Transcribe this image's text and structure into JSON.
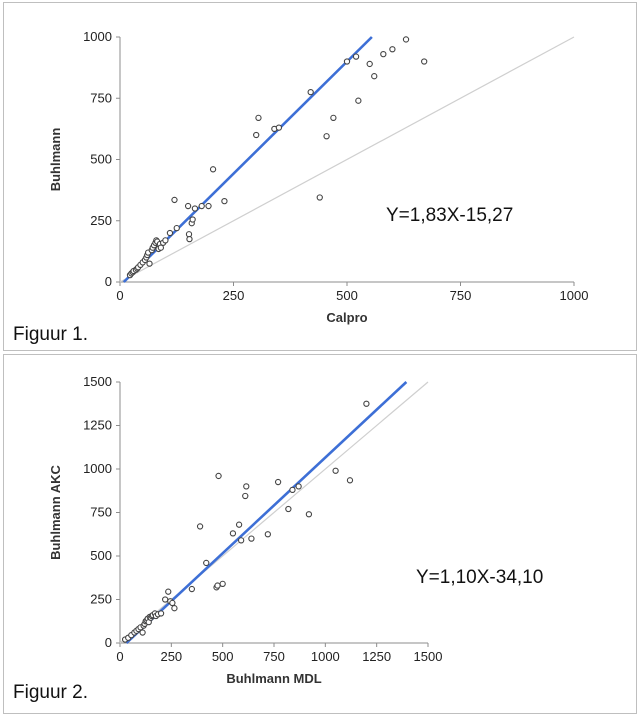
{
  "chart_data": [
    {
      "type": "scatter",
      "caption": "Figuur 1.",
      "equation": "Y=1,83X-15,27",
      "xlabel": "Calpro",
      "ylabel": "Buhlmann",
      "xlim": [
        0,
        1000
      ],
      "ylim": [
        0,
        1000
      ],
      "xticks": [
        0,
        250,
        500,
        750,
        1000
      ],
      "yticks": [
        0,
        250,
        500,
        750,
        1000
      ],
      "regression": {
        "slope": 1.83,
        "intercept": -15.27,
        "color": "#3d6fd6"
      },
      "identity_line": {
        "color": "#cfcfcf"
      },
      "points": [
        [
          22,
          28
        ],
        [
          25,
          35
        ],
        [
          28,
          40
        ],
        [
          30,
          45
        ],
        [
          35,
          50
        ],
        [
          38,
          55
        ],
        [
          40,
          60
        ],
        [
          45,
          70
        ],
        [
          50,
          80
        ],
        [
          55,
          90
        ],
        [
          58,
          100
        ],
        [
          60,
          110
        ],
        [
          62,
          120
        ],
        [
          65,
          75
        ],
        [
          70,
          130
        ],
        [
          72,
          140
        ],
        [
          75,
          150
        ],
        [
          78,
          160
        ],
        [
          80,
          170
        ],
        [
          82,
          165
        ],
        [
          85,
          135
        ],
        [
          88,
          155
        ],
        [
          90,
          140
        ],
        [
          95,
          160
        ],
        [
          100,
          170
        ],
        [
          110,
          200
        ],
        [
          120,
          335
        ],
        [
          125,
          220
        ],
        [
          150,
          310
        ],
        [
          152,
          195
        ],
        [
          153,
          175
        ],
        [
          158,
          240
        ],
        [
          160,
          255
        ],
        [
          165,
          300
        ],
        [
          180,
          310
        ],
        [
          195,
          310
        ],
        [
          205,
          460
        ],
        [
          230,
          330
        ],
        [
          300,
          600
        ],
        [
          305,
          670
        ],
        [
          340,
          625
        ],
        [
          350,
          630
        ],
        [
          420,
          775
        ],
        [
          440,
          345
        ],
        [
          455,
          595
        ],
        [
          470,
          670
        ],
        [
          500,
          900
        ],
        [
          520,
          920
        ],
        [
          525,
          740
        ],
        [
          550,
          890
        ],
        [
          560,
          840
        ],
        [
          580,
          930
        ],
        [
          600,
          950
        ],
        [
          630,
          990
        ],
        [
          670,
          900
        ]
      ]
    },
    {
      "type": "scatter",
      "caption": "Figuur 2.",
      "equation": "Y=1,10X-34,10",
      "xlabel": "Buhlmann MDL",
      "ylabel": "Buhlmann AKC",
      "xlim": [
        0,
        1500
      ],
      "ylim": [
        0,
        1500
      ],
      "xticks": [
        0,
        250,
        500,
        750,
        1000,
        1250,
        1500
      ],
      "yticks": [
        0,
        250,
        500,
        750,
        1000,
        1250,
        1500
      ],
      "regression": {
        "slope": 1.1,
        "intercept": -34.1,
        "color": "#3d6fd6"
      },
      "identity_line": {
        "color": "#cfcfcf"
      },
      "points": [
        [
          25,
          20
        ],
        [
          40,
          30
        ],
        [
          55,
          45
        ],
        [
          70,
          60
        ],
        [
          80,
          70
        ],
        [
          90,
          80
        ],
        [
          100,
          90
        ],
        [
          110,
          60
        ],
        [
          115,
          100
        ],
        [
          120,
          110
        ],
        [
          125,
          125
        ],
        [
          130,
          130
        ],
        [
          135,
          140
        ],
        [
          140,
          120
        ],
        [
          145,
          150
        ],
        [
          150,
          145
        ],
        [
          155,
          155
        ],
        [
          160,
          160
        ],
        [
          170,
          170
        ],
        [
          175,
          155
        ],
        [
          185,
          165
        ],
        [
          200,
          170
        ],
        [
          220,
          250
        ],
        [
          235,
          295
        ],
        [
          245,
          240
        ],
        [
          255,
          230
        ],
        [
          265,
          200
        ],
        [
          350,
          310
        ],
        [
          390,
          670
        ],
        [
          420,
          460
        ],
        [
          470,
          320
        ],
        [
          475,
          330
        ],
        [
          480,
          960
        ],
        [
          500,
          340
        ],
        [
          550,
          630
        ],
        [
          580,
          680
        ],
        [
          590,
          590
        ],
        [
          610,
          845
        ],
        [
          615,
          900
        ],
        [
          640,
          600
        ],
        [
          720,
          625
        ],
        [
          770,
          925
        ],
        [
          820,
          770
        ],
        [
          840,
          880
        ],
        [
          870,
          900
        ],
        [
          920,
          740
        ],
        [
          1050,
          990
        ],
        [
          1120,
          935
        ],
        [
          1200,
          1375
        ]
      ]
    }
  ]
}
